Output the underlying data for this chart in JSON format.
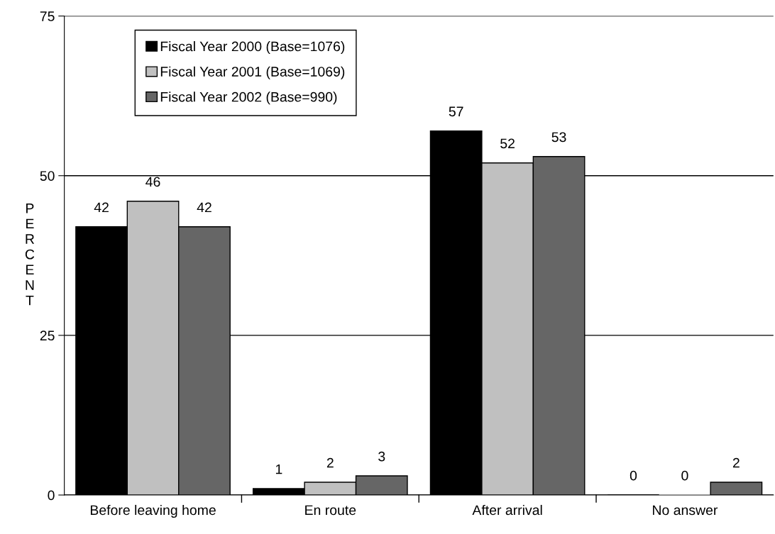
{
  "chart_data": {
    "type": "bar",
    "ylabel": "PERCENT",
    "categories": [
      "Before leaving home",
      "En route",
      "After arrival",
      "No answer"
    ],
    "series": [
      {
        "name": "Fiscal Year 2000 (Base=1076)",
        "color": "#000000",
        "values": [
          42,
          1,
          57,
          0
        ]
      },
      {
        "name": "Fiscal Year 2001 (Base=1069)",
        "color": "#c0c0c0",
        "values": [
          46,
          2,
          52,
          0
        ]
      },
      {
        "name": "Fiscal Year 2002 (Base=990)",
        "color": "#666666",
        "values": [
          42,
          3,
          53,
          2
        ]
      }
    ],
    "ylim": [
      0,
      75
    ],
    "yticks": [
      0,
      25,
      50,
      75
    ],
    "grid": "y",
    "legend": "top left",
    "data_labels": true
  }
}
